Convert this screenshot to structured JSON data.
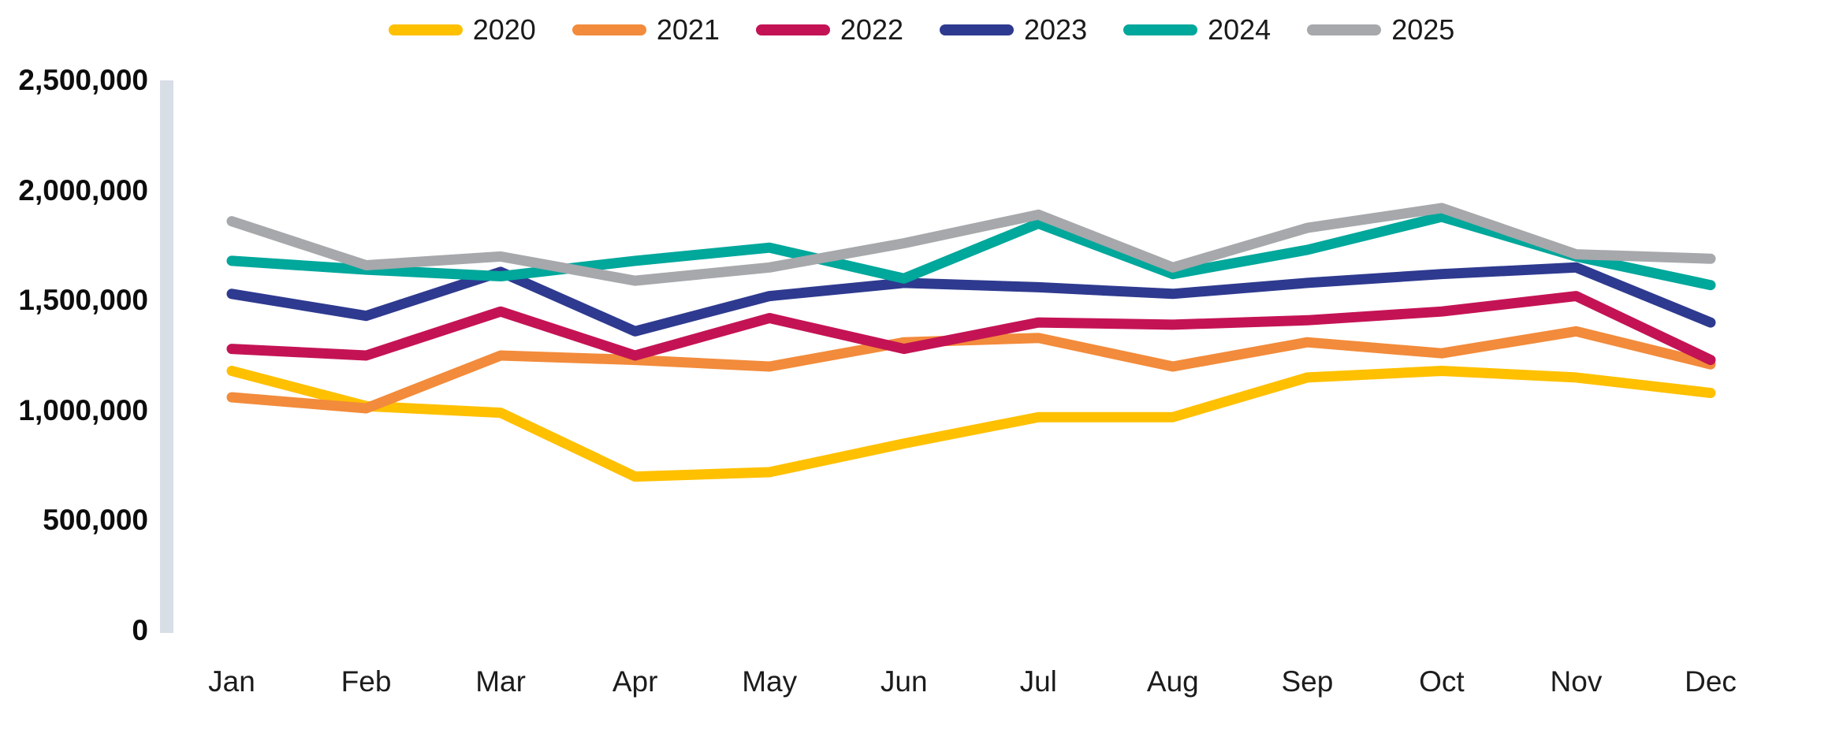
{
  "chart_data": {
    "type": "line",
    "categories": [
      "Jan",
      "Feb",
      "Mar",
      "Apr",
      "May",
      "Jun",
      "Jul",
      "Aug",
      "Sep",
      "Oct",
      "Nov",
      "Dec"
    ],
    "series": [
      {
        "name": "2020",
        "color": "#FFC000",
        "values": [
          1180000,
          1020000,
          990000,
          700000,
          720000,
          850000,
          970000,
          970000,
          1150000,
          1180000,
          1150000,
          1080000
        ]
      },
      {
        "name": "2021",
        "color": "#F28B3B",
        "values": [
          1060000,
          1010000,
          1250000,
          1230000,
          1200000,
          1310000,
          1330000,
          1200000,
          1310000,
          1260000,
          1360000,
          1210000
        ]
      },
      {
        "name": "2022",
        "color": "#C41354",
        "values": [
          1280000,
          1250000,
          1450000,
          1250000,
          1420000,
          1280000,
          1400000,
          1390000,
          1410000,
          1450000,
          1520000,
          1230000
        ]
      },
      {
        "name": "2023",
        "color": "#2E3A8F",
        "values": [
          1530000,
          1430000,
          1630000,
          1360000,
          1520000,
          1580000,
          1560000,
          1530000,
          1580000,
          1620000,
          1650000,
          1400000
        ]
      },
      {
        "name": "2024",
        "color": "#00A79B",
        "values": [
          1680000,
          1640000,
          1610000,
          1680000,
          1740000,
          1600000,
          1850000,
          1620000,
          1730000,
          1880000,
          1700000,
          1570000
        ]
      },
      {
        "name": "2025",
        "color": "#A6A8AB",
        "values": [
          1860000,
          1660000,
          1700000,
          1590000,
          1650000,
          1760000,
          1890000,
          1650000,
          1830000,
          1920000,
          1710000,
          1690000
        ]
      }
    ],
    "y_axis": {
      "min": 0,
      "max": 2500000,
      "step": 500000,
      "tick_labels_top_to_bottom": [
        "2,500,000",
        "2,000,000",
        "1,500,000",
        "1,000,000",
        "500,000",
        "0"
      ]
    },
    "legend_position": "top-center",
    "grid": false
  },
  "style_colors": {
    "axis_bar": "#D8DEE6",
    "label_text": "#1a1a1a"
  }
}
